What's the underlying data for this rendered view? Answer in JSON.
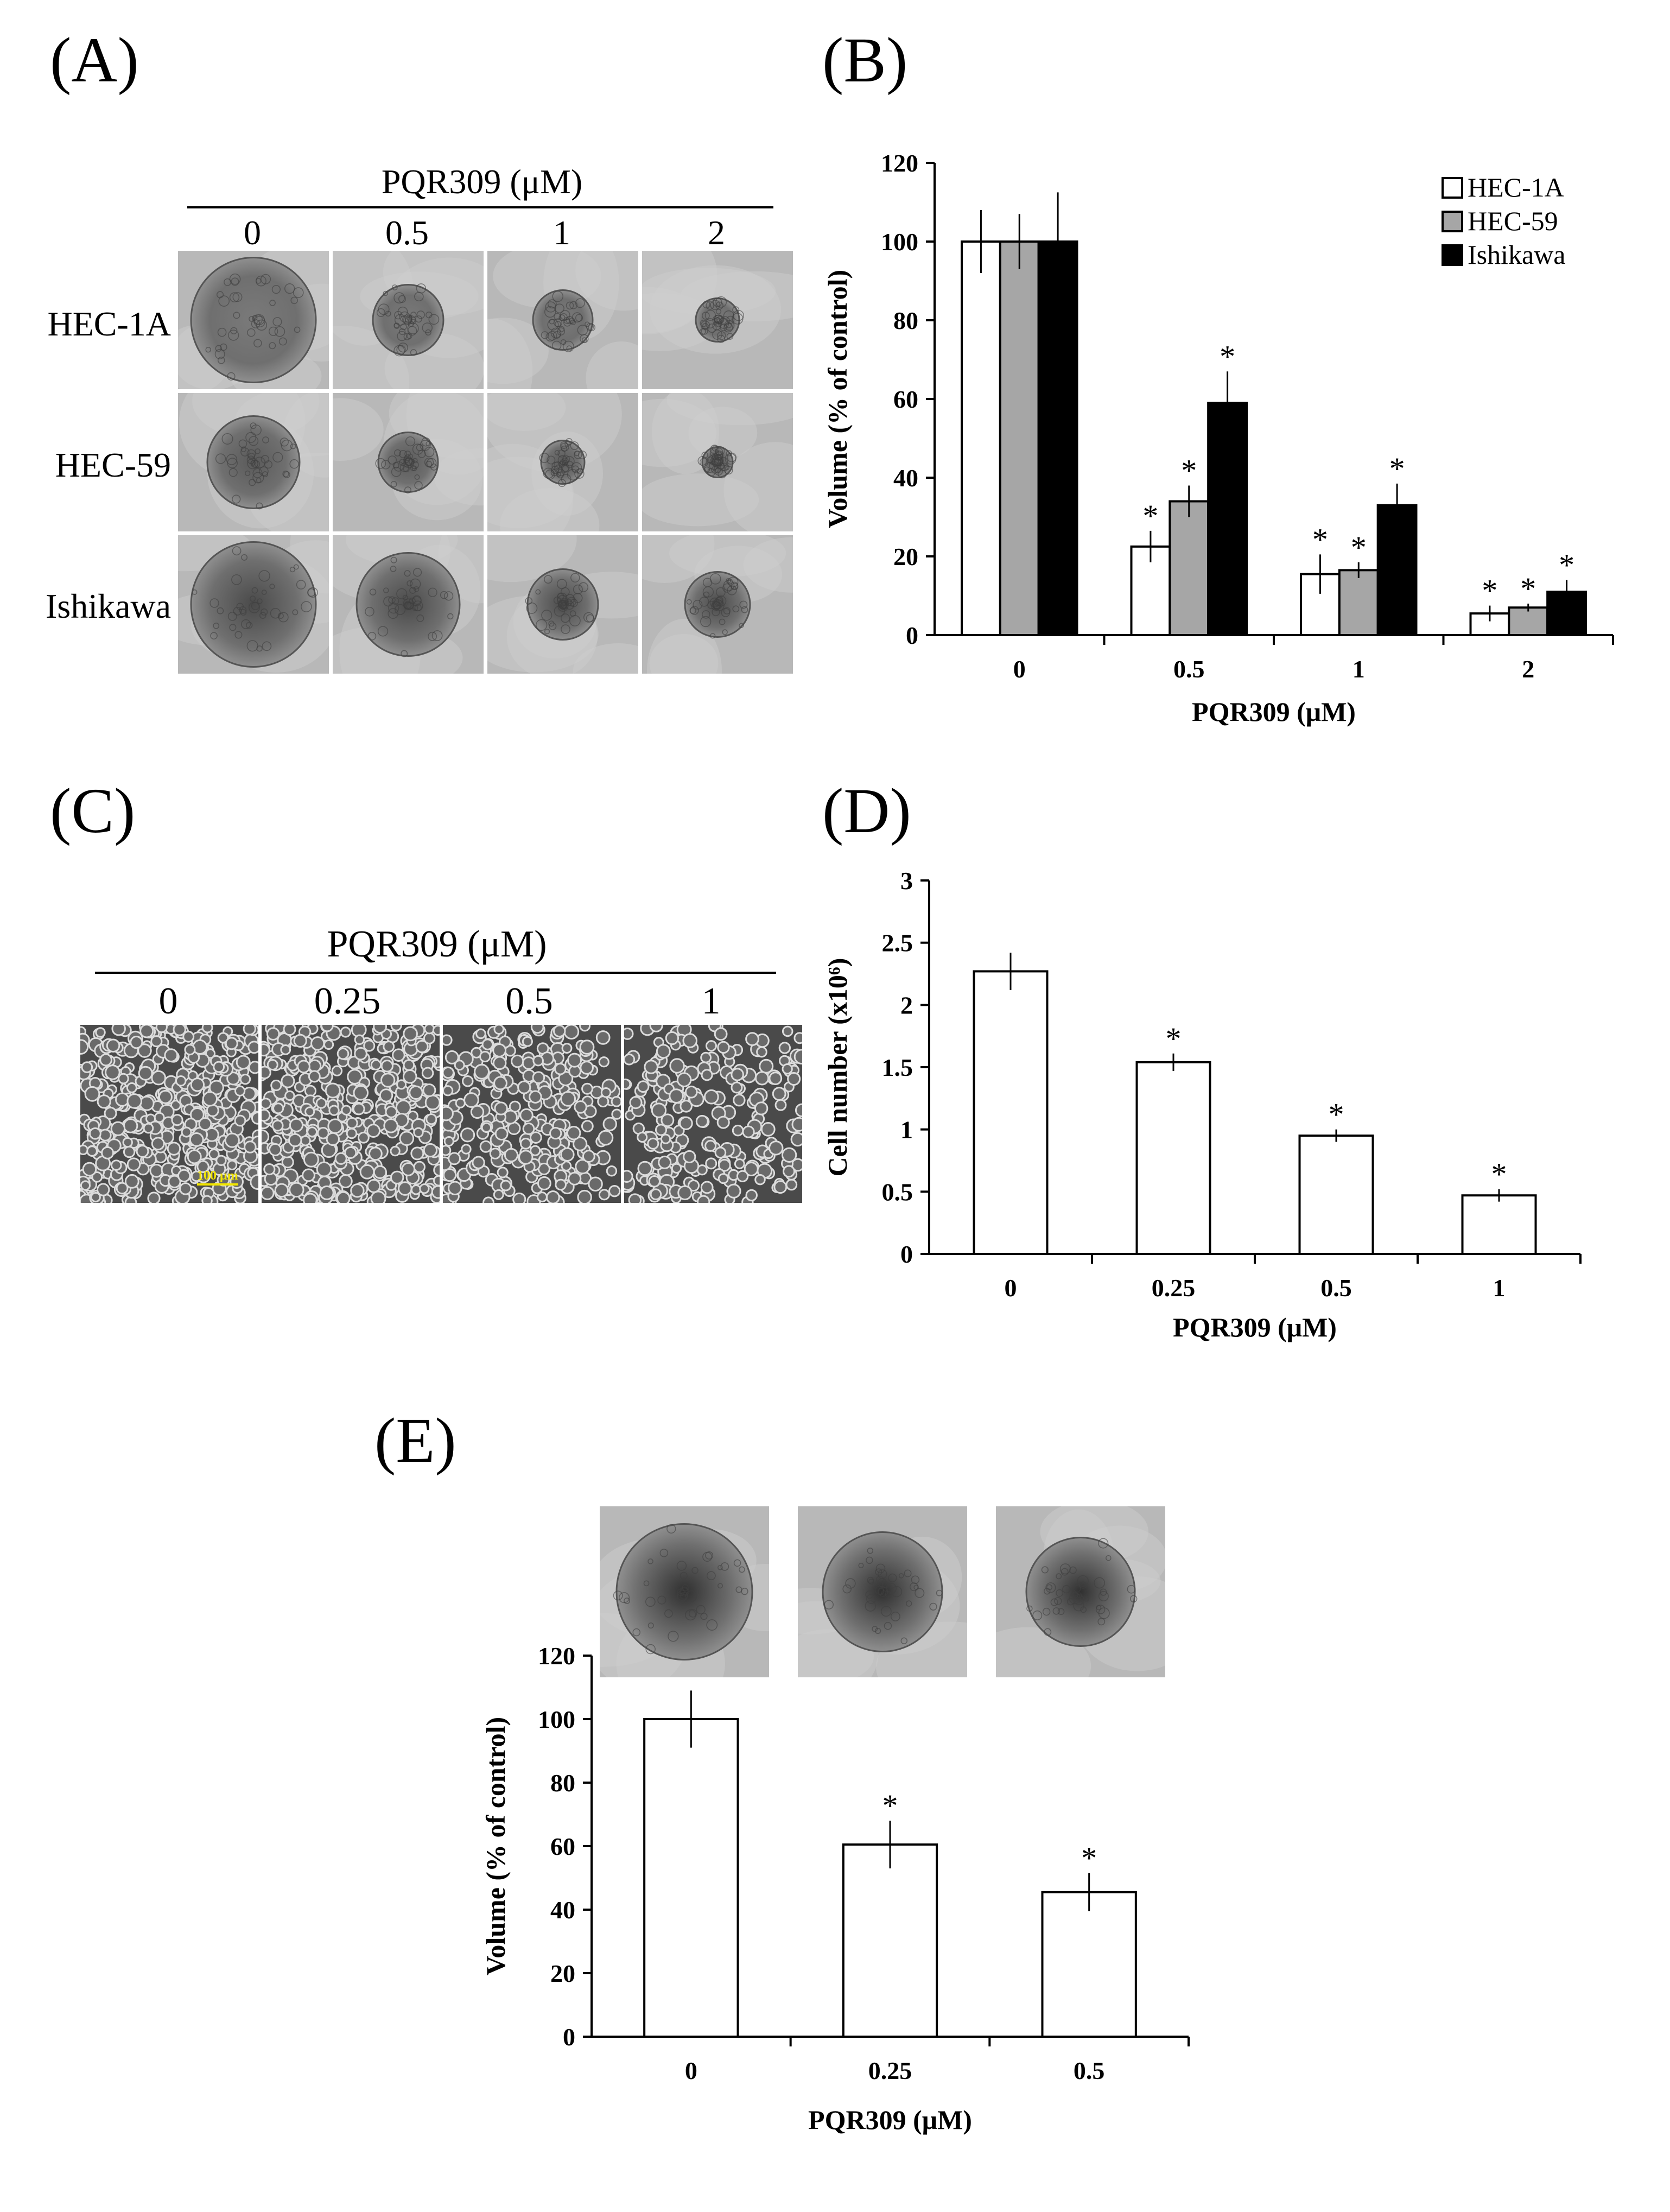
{
  "panels": {
    "A": {
      "label": "(A)",
      "header": "PQR309 (μM)",
      "concentrations": [
        "0",
        "0.5",
        "1",
        "2"
      ],
      "rows": [
        "HEC-1A",
        "HEC-59",
        "Ishikawa"
      ]
    },
    "C": {
      "label": "(C)",
      "header": "PQR309 (μM)",
      "concentrations": [
        "0",
        "0.25",
        "0.5",
        "1"
      ],
      "scale_bar": "100 μm"
    },
    "E": {
      "label": "(E)"
    }
  },
  "chart_data": [
    {
      "id": "B",
      "panel_label": "(B)",
      "type": "bar",
      "categories": [
        "0",
        "0.5",
        "1",
        "2"
      ],
      "series": [
        {
          "name": "HEC-1A",
          "values": [
            100,
            22.5,
            15.5,
            5.5
          ],
          "errors": [
            8,
            4,
            5,
            2
          ],
          "color": "#ffffff"
        },
        {
          "name": "HEC-59",
          "values": [
            100,
            34,
            16.5,
            7
          ],
          "errors": [
            7,
            4,
            2,
            1
          ],
          "color": "#a6a6a6"
        },
        {
          "name": "Ishikawa",
          "values": [
            100,
            59,
            33,
            11
          ],
          "errors": [
            12.5,
            8,
            5.5,
            3
          ],
          "color": "#000000"
        }
      ],
      "significant": [
        [
          false,
          true,
          true,
          true
        ],
        [
          false,
          true,
          true,
          true
        ],
        [
          false,
          true,
          true,
          true
        ]
      ],
      "significance_marker": "*",
      "xlabel": "PQR309 (μM)",
      "ylabel": "Volume (% of control)",
      "ylim": [
        0,
        120
      ],
      "yticks": [
        "0",
        "20",
        "40",
        "60",
        "80",
        "100",
        "120"
      ],
      "legend_position": "top-right",
      "grid": false
    },
    {
      "id": "D",
      "panel_label": "(D)",
      "type": "bar",
      "categories": [
        "0",
        "0.25",
        "0.5",
        "1"
      ],
      "series": [
        {
          "values": [
            2.27,
            1.54,
            0.95,
            0.47
          ],
          "errors": [
            0.15,
            0.07,
            0.05,
            0.05
          ],
          "color": "#ffffff"
        }
      ],
      "significant": [
        [
          false,
          true,
          true,
          true
        ]
      ],
      "significance_marker": "*",
      "xlabel": "PQR309 (μM)",
      "ylabel": "Cell number (x10⁶)",
      "ylim": [
        0,
        3
      ],
      "yticks": [
        "0",
        "0.5",
        "1",
        "1.5",
        "2",
        "2.5",
        "3"
      ],
      "grid": false
    },
    {
      "id": "E",
      "type": "bar",
      "categories": [
        "0",
        "0.25",
        "0.5"
      ],
      "series": [
        {
          "values": [
            100,
            60.5,
            45.5
          ],
          "errors": [
            9,
            7.5,
            6
          ],
          "color": "#ffffff"
        }
      ],
      "significant": [
        [
          false,
          true,
          true
        ]
      ],
      "significance_marker": "*",
      "xlabel": "PQR309 (μM)",
      "ylabel": "Volume (% of control)",
      "ylim": [
        0,
        120
      ],
      "yticks": [
        "0",
        "20",
        "40",
        "60",
        "80",
        "100",
        "120"
      ],
      "grid": false
    }
  ]
}
